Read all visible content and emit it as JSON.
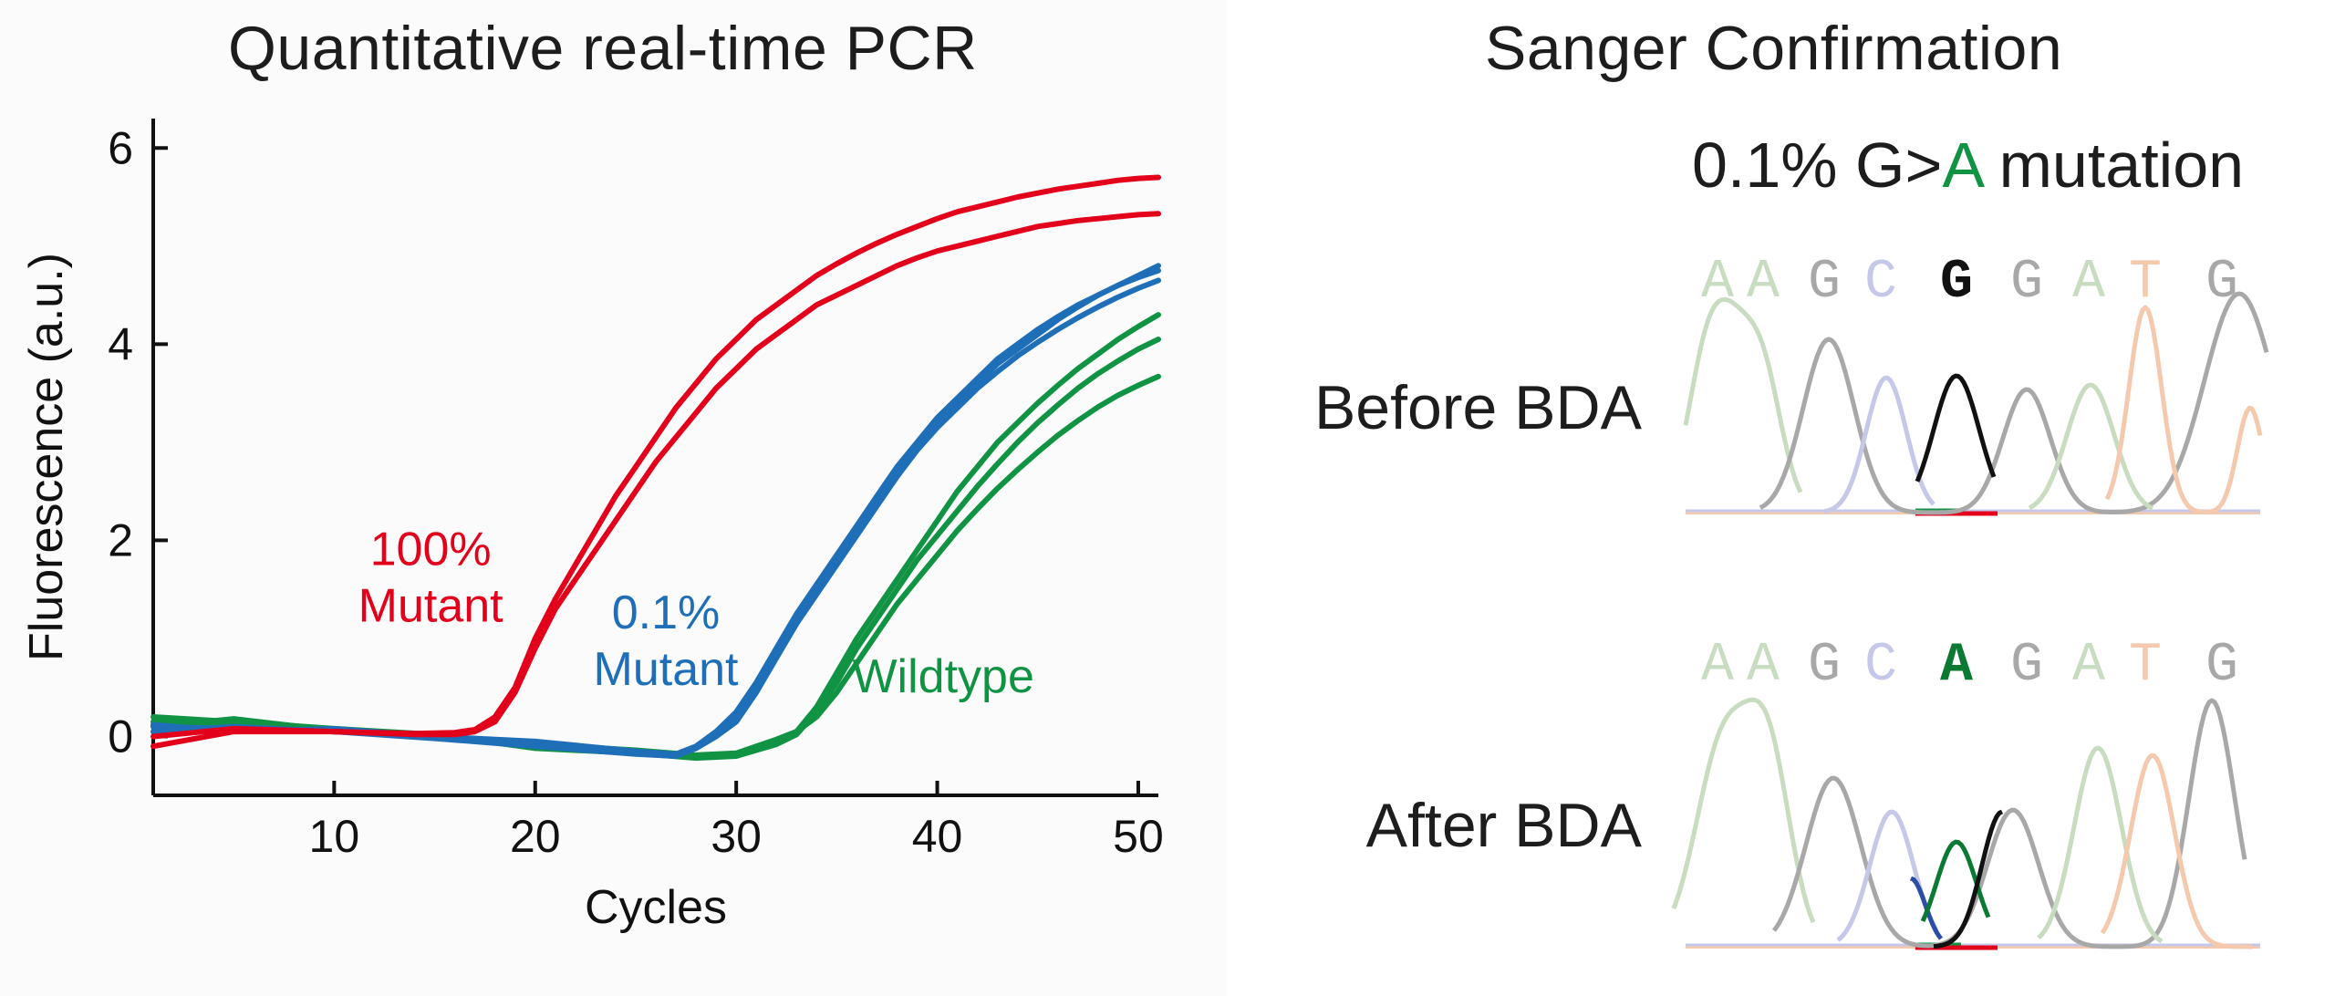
{
  "left_title": "Quantitative real-time PCR",
  "right_title": "Sanger Confirmation",
  "chart_data": [
    {
      "type": "line",
      "title": "Quantitative real-time PCR",
      "xlabel": "Cycles",
      "ylabel": "Fluorescence (a.u.)",
      "xlim": [
        1,
        51
      ],
      "ylim": [
        -0.6,
        6.3
      ],
      "xticks": [
        10,
        20,
        30,
        40,
        50
      ],
      "yticks": [
        0,
        2,
        4,
        6
      ],
      "grid": false,
      "series": [
        {
          "group": "100% Mutant",
          "color": "#e3001b",
          "x": [
            1,
            5,
            10,
            14,
            16,
            17,
            18,
            19,
            20,
            21,
            22,
            23,
            24,
            25,
            26,
            27,
            28,
            29,
            30,
            31,
            32,
            33,
            34,
            35,
            36,
            37,
            38,
            39,
            40,
            41,
            42,
            43,
            44,
            45,
            46,
            47,
            48,
            49,
            50,
            51
          ],
          "y": [
            -0.1,
            0.05,
            0.05,
            0.02,
            0.02,
            0.05,
            0.15,
            0.45,
            0.9,
            1.3,
            1.6,
            1.9,
            2.2,
            2.5,
            2.8,
            3.05,
            3.3,
            3.55,
            3.75,
            3.95,
            4.1,
            4.25,
            4.4,
            4.5,
            4.6,
            4.7,
            4.8,
            4.88,
            4.95,
            5.0,
            5.05,
            5.1,
            5.15,
            5.2,
            5.23,
            5.26,
            5.28,
            5.3,
            5.32,
            5.33
          ]
        },
        {
          "group": "100% Mutant",
          "color": "#e3001b",
          "x": [
            1,
            5,
            10,
            14,
            16,
            17,
            18,
            19,
            20,
            21,
            22,
            23,
            24,
            25,
            26,
            27,
            28,
            29,
            30,
            31,
            32,
            33,
            34,
            35,
            36,
            37,
            38,
            39,
            40,
            41,
            42,
            43,
            44,
            45,
            46,
            47,
            48,
            49,
            50,
            51
          ],
          "y": [
            0.0,
            0.08,
            0.05,
            0.03,
            0.04,
            0.07,
            0.2,
            0.5,
            1.0,
            1.4,
            1.75,
            2.1,
            2.45,
            2.75,
            3.05,
            3.35,
            3.6,
            3.85,
            4.05,
            4.25,
            4.4,
            4.55,
            4.7,
            4.82,
            4.93,
            5.03,
            5.12,
            5.2,
            5.28,
            5.35,
            5.4,
            5.45,
            5.5,
            5.54,
            5.58,
            5.61,
            5.64,
            5.67,
            5.69,
            5.7
          ]
        },
        {
          "group": "0.1% Mutant",
          "color": "#1f6fb8",
          "x": [
            1,
            5,
            10,
            15,
            20,
            25,
            27,
            28,
            29,
            30,
            31,
            32,
            33,
            34,
            35,
            36,
            37,
            38,
            39,
            40,
            41,
            42,
            43,
            44,
            45,
            46,
            47,
            48,
            49,
            50,
            51
          ],
          "y": [
            0.1,
            0.08,
            0.05,
            0.0,
            -0.08,
            -0.15,
            -0.18,
            -0.1,
            0.05,
            0.25,
            0.55,
            0.9,
            1.25,
            1.55,
            1.85,
            2.15,
            2.45,
            2.75,
            3.0,
            3.25,
            3.45,
            3.65,
            3.85,
            4.0,
            4.15,
            4.28,
            4.4,
            4.5,
            4.6,
            4.68,
            4.75
          ]
        },
        {
          "group": "0.1% Mutant",
          "color": "#1f6fb8",
          "x": [
            1,
            5,
            10,
            15,
            20,
            25,
            27,
            28,
            29,
            30,
            31,
            32,
            33,
            34,
            35,
            36,
            37,
            38,
            39,
            40,
            41,
            42,
            43,
            44,
            45,
            46,
            47,
            48,
            49,
            50,
            51
          ],
          "y": [
            0.05,
            0.1,
            0.05,
            -0.02,
            -0.1,
            -0.18,
            -0.2,
            -0.12,
            0.02,
            0.2,
            0.5,
            0.85,
            1.2,
            1.5,
            1.8,
            2.1,
            2.4,
            2.7,
            2.95,
            3.2,
            3.4,
            3.6,
            3.8,
            3.95,
            4.1,
            4.25,
            4.38,
            4.5,
            4.6,
            4.7,
            4.8
          ]
        },
        {
          "group": "0.1% Mutant",
          "color": "#1f6fb8",
          "x": [
            1,
            5,
            10,
            15,
            20,
            25,
            27,
            28,
            29,
            30,
            31,
            32,
            33,
            34,
            35,
            36,
            37,
            38,
            39,
            40,
            41,
            42,
            43,
            44,
            45,
            46,
            47,
            48,
            49,
            50,
            51
          ],
          "y": [
            0.12,
            0.05,
            0.08,
            0.0,
            -0.05,
            -0.15,
            -0.19,
            -0.12,
            0.0,
            0.15,
            0.45,
            0.8,
            1.15,
            1.45,
            1.75,
            2.05,
            2.35,
            2.65,
            2.92,
            3.15,
            3.35,
            3.55,
            3.72,
            3.88,
            4.02,
            4.15,
            4.27,
            4.38,
            4.48,
            4.57,
            4.65
          ]
        },
        {
          "group": "Wildtype",
          "color": "#119344",
          "x": [
            1,
            5,
            10,
            15,
            20,
            25,
            28,
            30,
            31,
            32,
            33,
            34,
            35,
            36,
            37,
            38,
            39,
            40,
            41,
            42,
            43,
            44,
            45,
            46,
            47,
            48,
            49,
            50,
            51
          ],
          "y": [
            0.15,
            0.12,
            0.05,
            0.0,
            -0.1,
            -0.15,
            -0.2,
            -0.18,
            -0.12,
            -0.05,
            0.05,
            0.3,
            0.65,
            1.0,
            1.3,
            1.6,
            1.9,
            2.2,
            2.5,
            2.75,
            3.0,
            3.2,
            3.4,
            3.58,
            3.75,
            3.9,
            4.05,
            4.18,
            4.3
          ]
        },
        {
          "group": "Wildtype",
          "color": "#119344",
          "x": [
            1,
            5,
            10,
            15,
            20,
            25,
            28,
            30,
            31,
            32,
            33,
            34,
            35,
            36,
            37,
            38,
            39,
            40,
            41,
            42,
            43,
            44,
            45,
            46,
            47,
            48,
            49,
            50,
            51
          ],
          "y": [
            0.2,
            0.15,
            0.08,
            0.02,
            -0.12,
            -0.17,
            -0.22,
            -0.2,
            -0.14,
            -0.08,
            0.02,
            0.25,
            0.55,
            0.9,
            1.2,
            1.5,
            1.8,
            2.05,
            2.3,
            2.55,
            2.78,
            3.0,
            3.2,
            3.38,
            3.55,
            3.7,
            3.83,
            3.95,
            4.05
          ]
        },
        {
          "group": "Wildtype",
          "color": "#119344",
          "x": [
            1,
            5,
            10,
            15,
            20,
            25,
            28,
            30,
            31,
            32,
            33,
            34,
            35,
            36,
            37,
            38,
            39,
            40,
            41,
            42,
            43,
            44,
            45,
            46,
            47,
            48,
            49,
            50,
            51
          ],
          "y": [
            0.1,
            0.18,
            0.06,
            0.0,
            -0.08,
            -0.14,
            -0.19,
            -0.17,
            -0.1,
            -0.03,
            0.05,
            0.2,
            0.45,
            0.75,
            1.05,
            1.35,
            1.6,
            1.85,
            2.1,
            2.32,
            2.53,
            2.72,
            2.9,
            3.07,
            3.22,
            3.36,
            3.48,
            3.58,
            3.67
          ]
        }
      ],
      "annotations": [
        {
          "lines": [
            "100%",
            "Mutant"
          ],
          "color": "#e3001b",
          "x": 14.8,
          "y": 1.75
        },
        {
          "lines": [
            "0.1%",
            "Mutant"
          ],
          "color": "#1f6fb8",
          "x": 26.5,
          "y": 1.1
        },
        {
          "lines": [
            "Wildtype"
          ],
          "color": "#119344",
          "x": 40.3,
          "y": 0.45
        }
      ]
    },
    {
      "type": "chromatogram",
      "title": "Sanger Confirmation",
      "subtitle": "0.1% G>A mutation",
      "subtitle_parts": [
        "0.1% G>",
        "A",
        " mutation"
      ],
      "subtitle_highlight_color": "#119344",
      "base_colors": {
        "A": "#c8dcc0",
        "C": "#c5c8e8",
        "G": "#a8a8a8",
        "T": "#f5c9ad"
      },
      "rows": [
        {
          "label": "Before BDA",
          "sequence": [
            "A",
            "A",
            "G",
            "C",
            "G",
            "G",
            "A",
            "T",
            "G"
          ],
          "highlight_index": 4,
          "highlight_color": "#111111"
        },
        {
          "label": "After BDA",
          "sequence": [
            "A",
            "A",
            "G",
            "C",
            "A",
            "G",
            "A",
            "T",
            "G"
          ],
          "highlight_index": 4,
          "highlight_color": "#0a7a33"
        }
      ]
    }
  ]
}
